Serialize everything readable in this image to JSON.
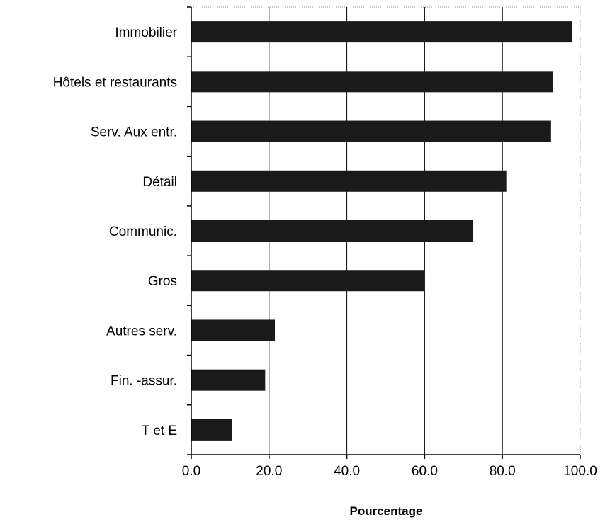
{
  "chart_data": {
    "type": "bar",
    "orientation": "horizontal",
    "categories": [
      "Immobilier",
      "Hôtels et restaurants",
      "Serv. Aux entr.",
      "Détail",
      "Communic.",
      "Gros",
      "Autres serv.",
      "Fin. -assur.",
      "T et E"
    ],
    "values": [
      98.0,
      93.0,
      92.5,
      81.0,
      72.5,
      60.0,
      21.5,
      19.0,
      10.5
    ],
    "xlabel": "Pourcentage",
    "ylabel": "",
    "xlim": [
      0,
      100
    ],
    "x_ticks": [
      "0.0",
      "20.0",
      "40.0",
      "60.0",
      "80.0",
      "100.0"
    ],
    "grid": "vertical",
    "bar_color": "#1a1a1a",
    "legend": "none"
  }
}
